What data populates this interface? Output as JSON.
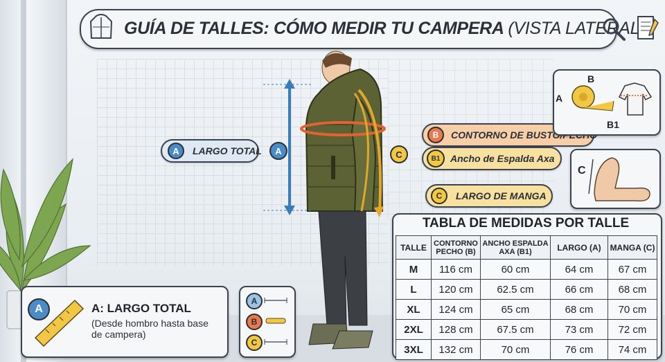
{
  "title": {
    "main": "GUÍA DE TALLES: CÓMO MEDIR TU CAMPERA",
    "sub": "(VISTA LATERAL)"
  },
  "icons": {
    "jacket": "jacket-icon",
    "search": "search-icon",
    "document": "document-icon"
  },
  "labels": {
    "largo_total": {
      "letter": "A",
      "text": "LARGO TOTAL"
    },
    "contorno": {
      "letter": "B",
      "text": "CONTORNO DE BUSTO/PECHO"
    },
    "ancho_espalda": {
      "letter": "B1",
      "text": "Ancho de Espalda Axa"
    },
    "largo_manga": {
      "letter": "C",
      "text": "LARGO DE MANGA"
    },
    "marker_a": "A",
    "marker_c": "C"
  },
  "diagram_b": {
    "top": "B",
    "left": "A",
    "bottom": "B1"
  },
  "diagram_c": {
    "letter": "C"
  },
  "legend_card": {
    "letter": "A",
    "title": "A: LARGO TOTAL",
    "description": "(Desde hombro hasta base de campera)"
  },
  "mini_legend": [
    "A",
    "B",
    "C"
  ],
  "table": {
    "title": "TABLA DE MEDIDAS POR TALLE",
    "headers": [
      "TALLE",
      "CONTORNO PECHO (B)",
      "ANCHO ESPALDA AXA (B1)",
      "LARGO (A)",
      "MANGA (C)"
    ],
    "rows": [
      [
        "M",
        "116 cm",
        "60 cm",
        "64 cm",
        "67 cm"
      ],
      [
        "L",
        "120 cm",
        "62.5 cm",
        "66 cm",
        "68 cm"
      ],
      [
        "XL",
        "124 cm",
        "65 cm",
        "68 cm",
        "70 cm"
      ],
      [
        "2XL",
        "128 cm",
        "67.5 cm",
        "73 cm",
        "72 cm"
      ],
      [
        "3XL",
        "132 cm",
        "70 cm",
        "76 cm",
        "74 cm"
      ]
    ]
  },
  "colors": {
    "blue_badge": "#4a8cc7",
    "orange_badge": "#e8794a",
    "yellow_badge": "#f2c744",
    "pill_peach": "#f6cfa9",
    "pill_yellow": "#f7e0a0",
    "jacket": "#5c6234"
  }
}
